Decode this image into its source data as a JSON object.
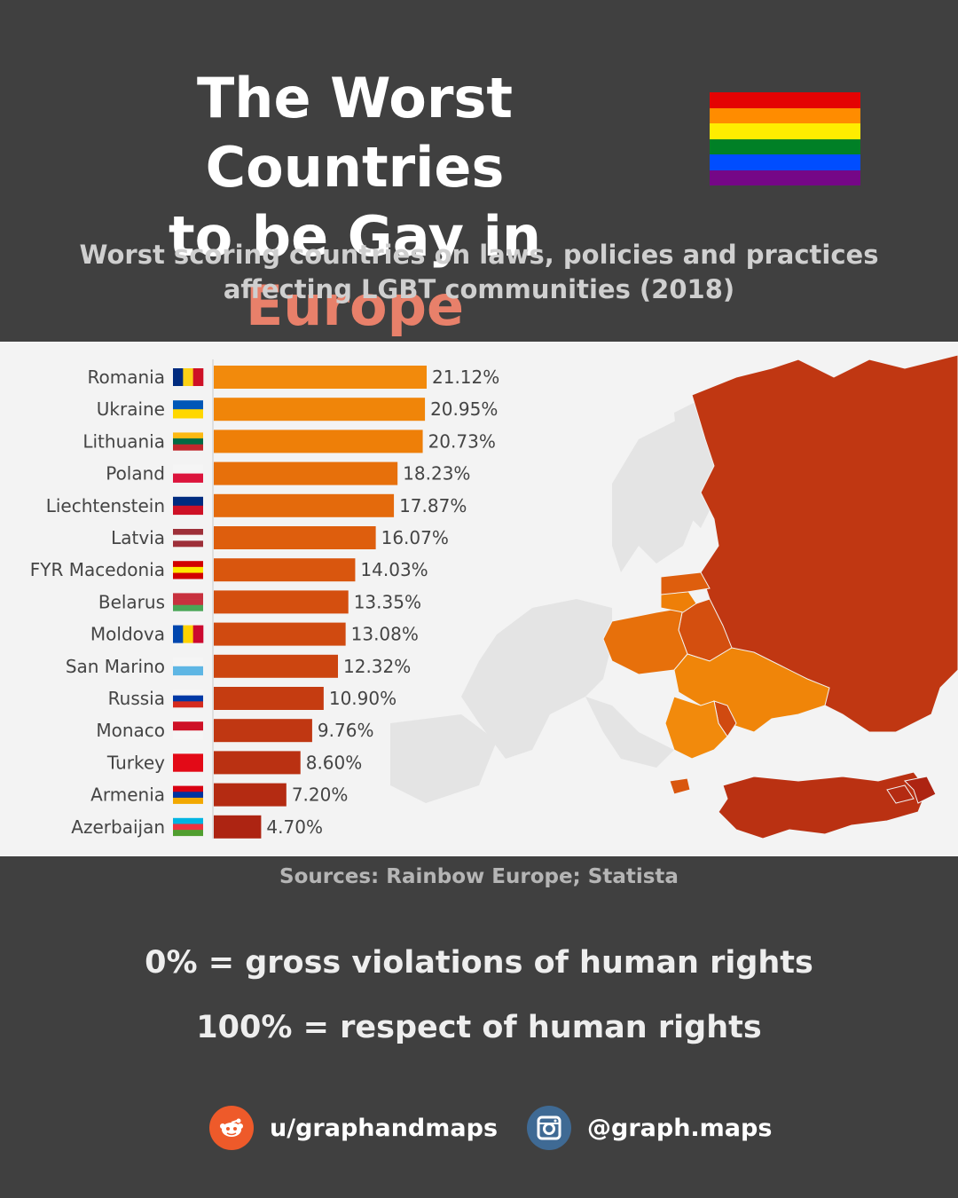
{
  "header": {
    "title_line1": "The Worst Countries",
    "title_line2_prefix": "to be Gay in ",
    "title_line2_accent": "Europe",
    "subtitle_line1": "Worst scoring countries on laws, policies and practices",
    "subtitle_line2": "affecting LGBT communities (2018)",
    "rainbow_colors": [
      "#e40303",
      "#ff8c00",
      "#ffed00",
      "#008026",
      "#004dff",
      "#750787"
    ]
  },
  "chart_data": {
    "type": "bar",
    "orientation": "horizontal",
    "categories": [
      "Romania",
      "Ukraine",
      "Lithuania",
      "Poland",
      "Liechtenstein",
      "Latvia",
      "FYR Macedonia",
      "Belarus",
      "Moldova",
      "San Marino",
      "Russia",
      "Monaco",
      "Turkey",
      "Armenia",
      "Azerbaijan"
    ],
    "values": [
      21.12,
      20.95,
      20.73,
      18.23,
      17.87,
      16.07,
      14.03,
      13.35,
      13.08,
      12.32,
      10.9,
      9.76,
      8.6,
      7.2,
      4.7
    ],
    "value_labels": [
      "21.12%",
      "20.95%",
      "20.73%",
      "18.23%",
      "17.87%",
      "16.07%",
      "14.03%",
      "13.35%",
      "13.08%",
      "12.32%",
      "10.90%",
      "9.76%",
      "8.60%",
      "7.20%",
      "4.70%"
    ],
    "bar_colors": [
      "#f28a0c",
      "#f08509",
      "#ee7f08",
      "#e7700b",
      "#e46a0c",
      "#de5e0d",
      "#d9560e",
      "#d44f0f",
      "#d04a10",
      "#cc4510",
      "#c53c11",
      "#c03712",
      "#ba3112",
      "#b42b12",
      "#ad2412"
    ],
    "xlim": [
      0,
      21.12
    ],
    "flag_icons": [
      "romania-flag",
      "ukraine-flag",
      "lithuania-flag",
      "poland-flag",
      "liechtenstein-flag",
      "latvia-flag",
      "macedonia-flag",
      "belarus-flag",
      "moldova-flag",
      "san-marino-flag",
      "russia-flag",
      "monaco-flag",
      "turkey-flag",
      "armenia-flag",
      "azerbaijan-flag"
    ],
    "map_colors": {
      "russia": "#c03712",
      "turkey": "#ba3112",
      "ukraine": "#f08509",
      "romania": "#f28a0c",
      "poland": "#e7700b",
      "belarus": "#d44f0f",
      "moldova": "#d04a10",
      "land": "#e4e4e4",
      "sea": "#f3f3f3"
    }
  },
  "footer": {
    "sources": "Sources:  Rainbow Europe; Statista",
    "legend_0": "0% = gross violations of human rights",
    "legend_100": "100% = respect of human rights",
    "reddit_handle": "u/graphandmaps",
    "instagram_handle": "@graph.maps",
    "reddit_color": "#ee5a2a",
    "instagram_color": "#3f6a94"
  }
}
